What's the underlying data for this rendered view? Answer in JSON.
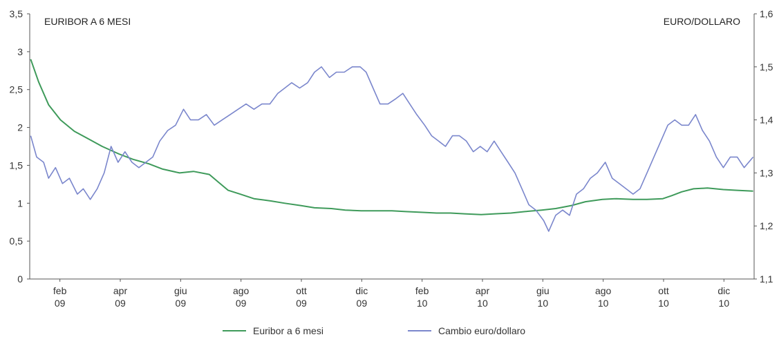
{
  "chart_data": {
    "type": "line",
    "left_axis_title": "EURIBOR A 6 MESI",
    "right_axis_title": "EURO/DOLLARO",
    "y_left": {
      "min": 0,
      "max": 3.5,
      "ticks": [
        "0",
        "0,5",
        "1",
        "1,5",
        "2",
        "2,5",
        "3",
        "3,5"
      ]
    },
    "y_right": {
      "min": 1.1,
      "max": 1.6,
      "ticks": [
        "1,1",
        "1,2",
        "1,3",
        "1,4",
        "1,5",
        "1,6"
      ]
    },
    "x_labels": [
      {
        "m": "feb",
        "y": "09"
      },
      {
        "m": "apr",
        "y": "09"
      },
      {
        "m": "giu",
        "y": "09"
      },
      {
        "m": "ago",
        "y": "09"
      },
      {
        "m": "ott",
        "y": "09"
      },
      {
        "m": "dic",
        "y": "09"
      },
      {
        "m": "feb",
        "y": "10"
      },
      {
        "m": "apr",
        "y": "10"
      },
      {
        "m": "giu",
        "y": "10"
      },
      {
        "m": "ago",
        "y": "10"
      },
      {
        "m": "ott",
        "y": "10"
      },
      {
        "m": "dic",
        "y": "10"
      }
    ],
    "series": [
      {
        "name": "Euribor a 6 mesi",
        "axis": "left",
        "color": "#3e9a5a",
        "points": [
          [
            "2009-01-02",
            2.9
          ],
          [
            "2009-01-10",
            2.6
          ],
          [
            "2009-01-20",
            2.3
          ],
          [
            "2009-02-01",
            2.1
          ],
          [
            "2009-02-15",
            1.95
          ],
          [
            "2009-03-01",
            1.85
          ],
          [
            "2009-03-15",
            1.75
          ],
          [
            "2009-04-01",
            1.65
          ],
          [
            "2009-04-15",
            1.58
          ],
          [
            "2009-05-01",
            1.52
          ],
          [
            "2009-05-15",
            1.45
          ],
          [
            "2009-06-01",
            1.4
          ],
          [
            "2009-06-15",
            1.42
          ],
          [
            "2009-07-01",
            1.38
          ],
          [
            "2009-07-10",
            1.28
          ],
          [
            "2009-07-20",
            1.17
          ],
          [
            "2009-08-01",
            1.12
          ],
          [
            "2009-08-15",
            1.06
          ],
          [
            "2009-09-01",
            1.03
          ],
          [
            "2009-09-15",
            1.0
          ],
          [
            "2009-10-01",
            0.97
          ],
          [
            "2009-10-15",
            0.94
          ],
          [
            "2009-11-01",
            0.93
          ],
          [
            "2009-11-15",
            0.91
          ],
          [
            "2009-12-01",
            0.9
          ],
          [
            "2009-12-15",
            0.9
          ],
          [
            "2010-01-01",
            0.9
          ],
          [
            "2010-01-15",
            0.89
          ],
          [
            "2010-02-01",
            0.88
          ],
          [
            "2010-02-15",
            0.87
          ],
          [
            "2010-03-01",
            0.87
          ],
          [
            "2010-03-15",
            0.86
          ],
          [
            "2010-04-01",
            0.85
          ],
          [
            "2010-04-15",
            0.86
          ],
          [
            "2010-05-01",
            0.87
          ],
          [
            "2010-05-15",
            0.89
          ],
          [
            "2010-06-01",
            0.91
          ],
          [
            "2010-06-15",
            0.93
          ],
          [
            "2010-07-01",
            0.97
          ],
          [
            "2010-07-15",
            1.02
          ],
          [
            "2010-08-01",
            1.05
          ],
          [
            "2010-08-15",
            1.06
          ],
          [
            "2010-09-01",
            1.05
          ],
          [
            "2010-09-15",
            1.05
          ],
          [
            "2010-10-01",
            1.06
          ],
          [
            "2010-10-10",
            1.1
          ],
          [
            "2010-10-20",
            1.15
          ],
          [
            "2010-11-01",
            1.19
          ],
          [
            "2010-11-15",
            1.2
          ],
          [
            "2010-12-01",
            1.18
          ],
          [
            "2010-12-15",
            1.17
          ],
          [
            "2010-12-31",
            1.16
          ]
        ]
      },
      {
        "name": "Cambio euro/dollaro",
        "axis": "right",
        "color": "#7a86cc",
        "points": [
          [
            "2009-01-02",
            1.37
          ],
          [
            "2009-01-08",
            1.33
          ],
          [
            "2009-01-15",
            1.32
          ],
          [
            "2009-01-20",
            1.29
          ],
          [
            "2009-01-27",
            1.31
          ],
          [
            "2009-02-03",
            1.28
          ],
          [
            "2009-02-10",
            1.29
          ],
          [
            "2009-02-18",
            1.26
          ],
          [
            "2009-02-24",
            1.27
          ],
          [
            "2009-03-03",
            1.25
          ],
          [
            "2009-03-10",
            1.27
          ],
          [
            "2009-03-17",
            1.3
          ],
          [
            "2009-03-24",
            1.35
          ],
          [
            "2009-03-31",
            1.32
          ],
          [
            "2009-04-07",
            1.34
          ],
          [
            "2009-04-14",
            1.32
          ],
          [
            "2009-04-21",
            1.31
          ],
          [
            "2009-04-28",
            1.32
          ],
          [
            "2009-05-05",
            1.33
          ],
          [
            "2009-05-12",
            1.36
          ],
          [
            "2009-05-20",
            1.38
          ],
          [
            "2009-05-28",
            1.39
          ],
          [
            "2009-06-05",
            1.42
          ],
          [
            "2009-06-12",
            1.4
          ],
          [
            "2009-06-20",
            1.4
          ],
          [
            "2009-06-28",
            1.41
          ],
          [
            "2009-07-06",
            1.39
          ],
          [
            "2009-07-14",
            1.4
          ],
          [
            "2009-07-22",
            1.41
          ],
          [
            "2009-07-30",
            1.42
          ],
          [
            "2009-08-07",
            1.43
          ],
          [
            "2009-08-15",
            1.42
          ],
          [
            "2009-08-23",
            1.43
          ],
          [
            "2009-08-31",
            1.43
          ],
          [
            "2009-09-08",
            1.45
          ],
          [
            "2009-09-15",
            1.46
          ],
          [
            "2009-09-22",
            1.47
          ],
          [
            "2009-09-30",
            1.46
          ],
          [
            "2009-10-08",
            1.47
          ],
          [
            "2009-10-15",
            1.49
          ],
          [
            "2009-10-22",
            1.5
          ],
          [
            "2009-10-30",
            1.48
          ],
          [
            "2009-11-06",
            1.49
          ],
          [
            "2009-11-14",
            1.49
          ],
          [
            "2009-11-22",
            1.5
          ],
          [
            "2009-11-30",
            1.5
          ],
          [
            "2009-12-06",
            1.49
          ],
          [
            "2009-12-13",
            1.46
          ],
          [
            "2009-12-20",
            1.43
          ],
          [
            "2009-12-28",
            1.43
          ],
          [
            "2010-01-05",
            1.44
          ],
          [
            "2010-01-12",
            1.45
          ],
          [
            "2010-01-19",
            1.43
          ],
          [
            "2010-01-26",
            1.41
          ],
          [
            "2010-02-03",
            1.39
          ],
          [
            "2010-02-10",
            1.37
          ],
          [
            "2010-02-17",
            1.36
          ],
          [
            "2010-02-24",
            1.35
          ],
          [
            "2010-03-03",
            1.37
          ],
          [
            "2010-03-10",
            1.37
          ],
          [
            "2010-03-17",
            1.36
          ],
          [
            "2010-03-24",
            1.34
          ],
          [
            "2010-03-31",
            1.35
          ],
          [
            "2010-04-07",
            1.34
          ],
          [
            "2010-04-14",
            1.36
          ],
          [
            "2010-04-21",
            1.34
          ],
          [
            "2010-04-28",
            1.32
          ],
          [
            "2010-05-05",
            1.3
          ],
          [
            "2010-05-12",
            1.27
          ],
          [
            "2010-05-19",
            1.24
          ],
          [
            "2010-05-26",
            1.23
          ],
          [
            "2010-06-03",
            1.21
          ],
          [
            "2010-06-08",
            1.19
          ],
          [
            "2010-06-15",
            1.22
          ],
          [
            "2010-06-22",
            1.23
          ],
          [
            "2010-06-29",
            1.22
          ],
          [
            "2010-07-06",
            1.26
          ],
          [
            "2010-07-13",
            1.27
          ],
          [
            "2010-07-20",
            1.29
          ],
          [
            "2010-07-27",
            1.3
          ],
          [
            "2010-08-04",
            1.32
          ],
          [
            "2010-08-11",
            1.29
          ],
          [
            "2010-08-18",
            1.28
          ],
          [
            "2010-08-25",
            1.27
          ],
          [
            "2010-09-01",
            1.26
          ],
          [
            "2010-09-08",
            1.27
          ],
          [
            "2010-09-15",
            1.3
          ],
          [
            "2010-09-22",
            1.33
          ],
          [
            "2010-09-29",
            1.36
          ],
          [
            "2010-10-06",
            1.39
          ],
          [
            "2010-10-13",
            1.4
          ],
          [
            "2010-10-20",
            1.39
          ],
          [
            "2010-10-27",
            1.39
          ],
          [
            "2010-11-03",
            1.41
          ],
          [
            "2010-11-10",
            1.38
          ],
          [
            "2010-11-17",
            1.36
          ],
          [
            "2010-11-24",
            1.33
          ],
          [
            "2010-12-01",
            1.31
          ],
          [
            "2010-12-08",
            1.33
          ],
          [
            "2010-12-15",
            1.33
          ],
          [
            "2010-12-22",
            1.31
          ],
          [
            "2010-12-31",
            1.33
          ]
        ]
      }
    ]
  }
}
